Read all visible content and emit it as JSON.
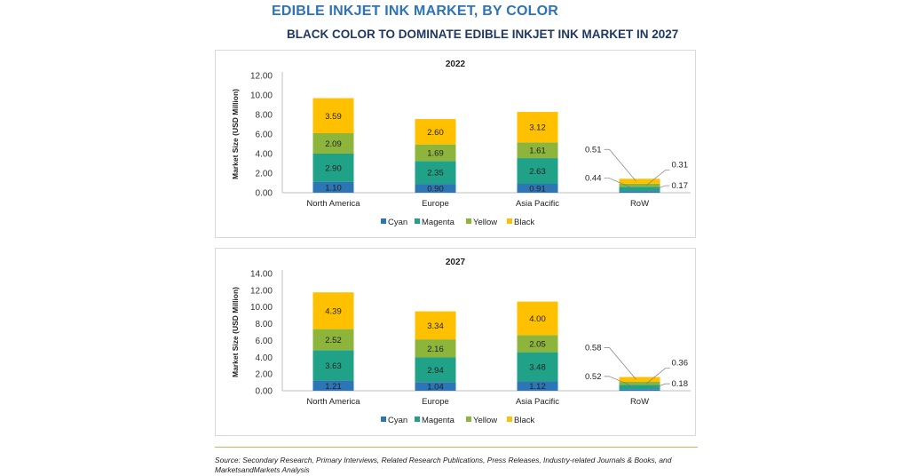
{
  "header": {
    "title": "EDIBLE INKJET INK MARKET, BY COLOR",
    "subtitle": "BLACK COLOR TO DOMINATE EDIBLE INKJET INK MARKET IN 2027"
  },
  "colors": {
    "Cyan": "#2e75b6",
    "Magenta": "#1fa287",
    "Yellow": "#8db53c",
    "Black": "#ffc000"
  },
  "chart_data": [
    {
      "type": "bar",
      "stacked": true,
      "title": "2022",
      "ylabel": "Market Size (USD Million)",
      "ylim": [
        0,
        12
      ],
      "yticks": [
        "0.00",
        "2.00",
        "4.00",
        "6.00",
        "8.00",
        "10.00",
        "12.00"
      ],
      "categories": [
        "North America",
        "Europe",
        "Asia Pacific",
        "RoW"
      ],
      "series": [
        {
          "name": "Cyan",
          "values": [
            1.1,
            0.9,
            0.91,
            0.17
          ],
          "labels": [
            "1.10",
            "0.90",
            "0.91",
            "0.17"
          ]
        },
        {
          "name": "Magenta",
          "values": [
            2.9,
            2.35,
            2.63,
            0.44
          ],
          "labels": [
            "2.90",
            "2.35",
            "2.63",
            "0.44"
          ]
        },
        {
          "name": "Yellow",
          "values": [
            2.09,
            1.69,
            1.61,
            0.31
          ],
          "labels": [
            "2.09",
            "1.69",
            "1.61",
            "0.31"
          ]
        },
        {
          "name": "Black",
          "values": [
            3.59,
            2.6,
            3.12,
            0.51
          ],
          "labels": [
            "3.59",
            "2.60",
            "3.12",
            "0.51"
          ]
        }
      ],
      "legend": "bottom"
    },
    {
      "type": "bar",
      "stacked": true,
      "title": "2027",
      "ylabel": "Market Size (USD Million)",
      "ylim": [
        0,
        14
      ],
      "yticks": [
        "0.00",
        "2.00",
        "4.00",
        "6.00",
        "8.00",
        "10.00",
        "12.00",
        "14.00"
      ],
      "categories": [
        "North America",
        "Europe",
        "Asia Pacific",
        "RoW"
      ],
      "series": [
        {
          "name": "Cyan",
          "values": [
            1.21,
            1.04,
            1.12,
            0.18
          ],
          "labels": [
            "1.21",
            "1.04",
            "1.12",
            "0.18"
          ]
        },
        {
          "name": "Magenta",
          "values": [
            3.63,
            2.94,
            3.48,
            0.52
          ],
          "labels": [
            "3.63",
            "2.94",
            "3.48",
            "0.52"
          ]
        },
        {
          "name": "Yellow",
          "values": [
            2.52,
            2.16,
            2.05,
            0.36
          ],
          "labels": [
            "2.52",
            "2.16",
            "2.05",
            "0.36"
          ]
        },
        {
          "name": "Black",
          "values": [
            4.39,
            3.34,
            4.0,
            0.58
          ],
          "labels": [
            "4.39",
            "3.34",
            "4.00",
            "0.58"
          ]
        }
      ],
      "legend": "bottom"
    }
  ],
  "footer": {
    "source": "Source: Secondary Research, Primary Interviews, Related Research Publications, Press Releases, Industry-related Journals & Books, and MarketsandMarkets Analysis"
  }
}
